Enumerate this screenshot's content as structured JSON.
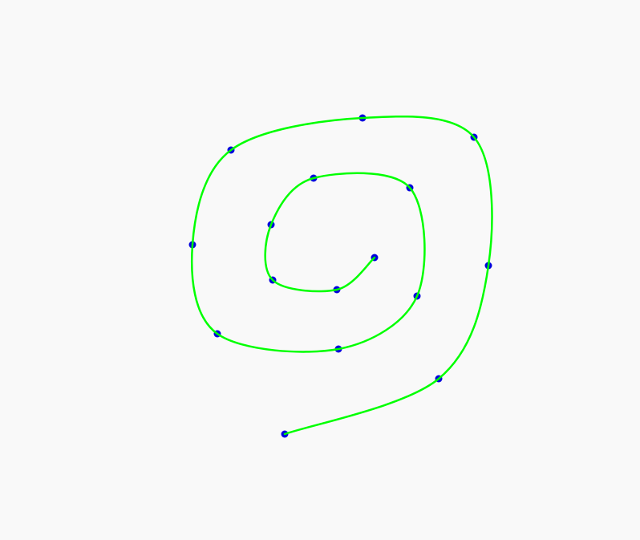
{
  "colors": {
    "background": "#f9f9f9",
    "curve": "#00ff00",
    "point_fill": "#0000dd",
    "point_stroke": "#0000dd"
  },
  "shape": "spiral",
  "control_point_count": 16
}
